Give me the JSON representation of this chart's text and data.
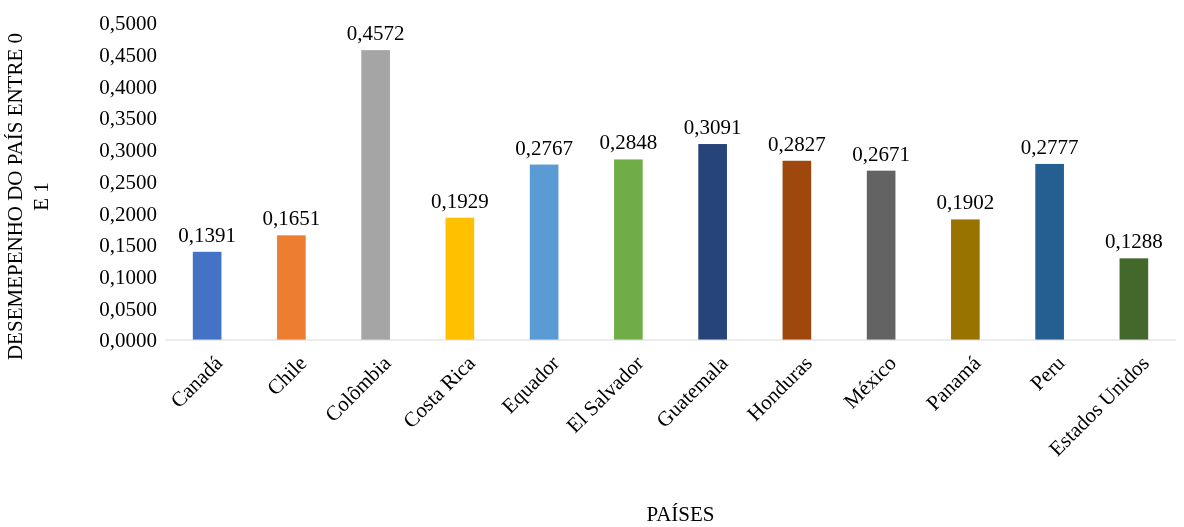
{
  "chart_data": {
    "type": "bar",
    "xlabel": "PAÍSES",
    "ylabel": "DESEMEPENHO DO PAÍS ENTRE 0 E 1",
    "categories": [
      "Canadá",
      "Chile",
      "Colômbia",
      "Costa Rica",
      "Equador",
      "El Salvador",
      "Guatemala",
      "Honduras",
      "México",
      "Panamá",
      "Peru",
      "Estados Unidos"
    ],
    "values": [
      0.1391,
      0.1651,
      0.4572,
      0.1929,
      0.2767,
      0.2848,
      0.3091,
      0.2827,
      0.2671,
      0.1902,
      0.2777,
      0.1288
    ],
    "value_labels": [
      "0,1391",
      "0,1651",
      "0,4572",
      "0,1929",
      "0,2767",
      "0,2848",
      "0,3091",
      "0,2827",
      "0,2671",
      "0,1902",
      "0,2777",
      "0,1288"
    ],
    "colors": [
      "#4472c4",
      "#ed7d31",
      "#a5a5a5",
      "#ffc000",
      "#5b9bd5",
      "#70ad47",
      "#264478",
      "#9e480e",
      "#636363",
      "#997300",
      "#255e91",
      "#43682b"
    ],
    "ylim": [
      0,
      0.5
    ],
    "yticks": [
      {
        "value": 0,
        "label": "0,0000"
      },
      {
        "value": 0.05,
        "label": "0,0500"
      },
      {
        "value": 0.1,
        "label": "0,1000"
      },
      {
        "value": 0.15,
        "label": "0,1500"
      },
      {
        "value": 0.2,
        "label": "0,2000"
      },
      {
        "value": 0.25,
        "label": "0,2500"
      },
      {
        "value": 0.3,
        "label": "0,3000"
      },
      {
        "value": 0.35,
        "label": "0,3500"
      },
      {
        "value": 0.4,
        "label": "0,4000"
      },
      {
        "value": 0.45,
        "label": "0,4500"
      },
      {
        "value": 0.5,
        "label": "0,5000"
      }
    ],
    "grid": false
  }
}
